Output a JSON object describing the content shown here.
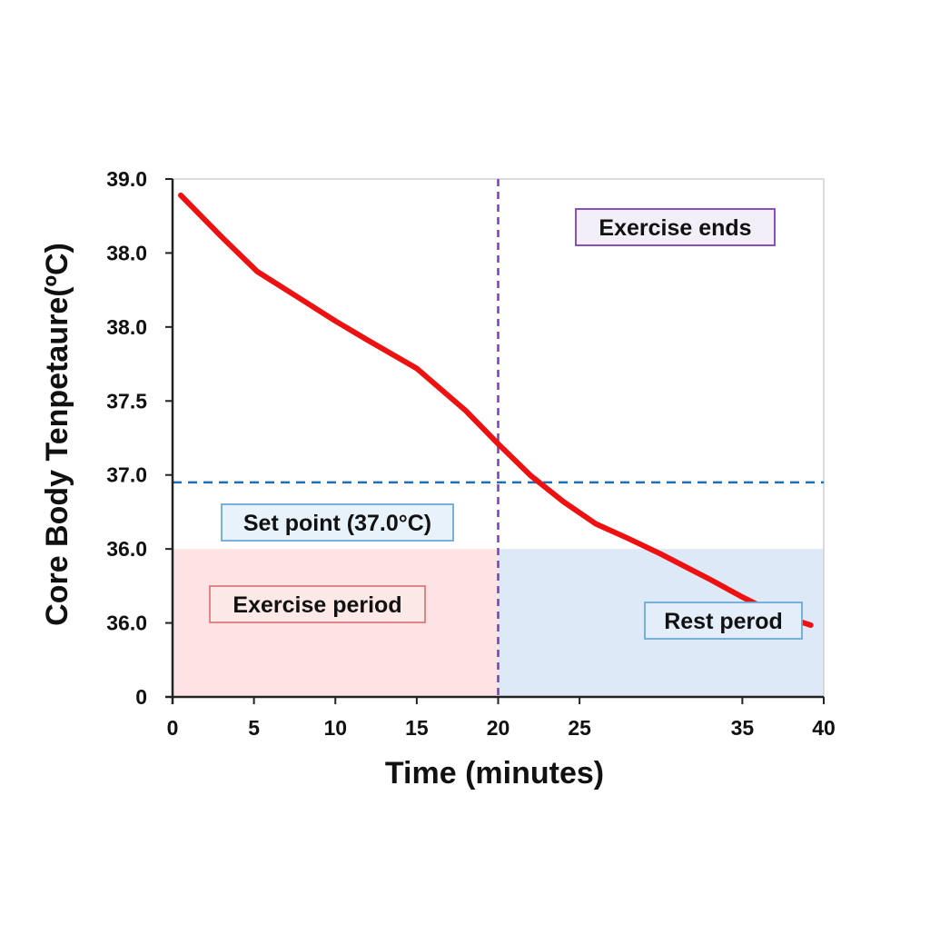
{
  "chart_data": {
    "type": "line",
    "xlabel": "Time (minutes)",
    "ylabel": "Core Body Tenpetaure(ºC)",
    "x_ticks": [
      {
        "value": 0,
        "label": "0"
      },
      {
        "value": 5,
        "label": "5"
      },
      {
        "value": 10,
        "label": "10"
      },
      {
        "value": 15,
        "label": "15"
      },
      {
        "value": 20,
        "label": "20"
      },
      {
        "value": 25,
        "label": "25"
      },
      {
        "value": 35,
        "label": "35"
      },
      {
        "value": 40,
        "label": "40"
      }
    ],
    "y_tick_labels": [
      "0",
      "36.0",
      "36.0",
      "37.0",
      "37.5",
      "38.0",
      "38.0",
      "39.0"
    ],
    "xlim": [
      0,
      40
    ],
    "ylim": [
      0,
      7
    ],
    "y_scale_note": "y values are tick-position units: 0 → '0', 7 → '39.0'",
    "series": [
      {
        "color": "#ee1111",
        "x": [
          0.5,
          3,
          5.2,
          8,
          10,
          12,
          15,
          18,
          20,
          22,
          24,
          26,
          28,
          30,
          33,
          35,
          37,
          39.2
        ],
        "y": [
          6.78,
          6.22,
          5.75,
          5.36,
          5.08,
          4.82,
          4.44,
          3.87,
          3.42,
          2.99,
          2.64,
          2.34,
          2.14,
          1.93,
          1.59,
          1.35,
          1.13,
          0.97
        ]
      }
    ],
    "reference_lines": [
      {
        "orientation": "horizontal",
        "y": 2.9,
        "color": "#1f6fb5",
        "style": "dashed"
      },
      {
        "orientation": "vertical",
        "x": 20,
        "color": "#7b3fb5",
        "style": "dashed"
      }
    ],
    "shaded_regions": [
      {
        "x_from": 0,
        "x_to": 20,
        "y_from": 0,
        "y_to": 2.0,
        "color": "#fde3e3"
      },
      {
        "x_from": 20,
        "x_to": 40,
        "y_from": 0,
        "y_to": 2.0,
        "color": "#dde9f6"
      }
    ],
    "annotations": [
      {
        "text": "Exercise ends",
        "border": "#7b3fb5",
        "fill": "#f3eff8"
      },
      {
        "text": "Set point (37.0°C)",
        "border": "#6aaad8",
        "fill": "#e8f2fb"
      },
      {
        "text": "Exercise period",
        "border": "#e07a7a",
        "fill": "#fde8e8"
      },
      {
        "text": "Rest perod",
        "border": "#6aaad8",
        "fill": "#e3eefa"
      }
    ],
    "grid": false,
    "legend": "none"
  }
}
